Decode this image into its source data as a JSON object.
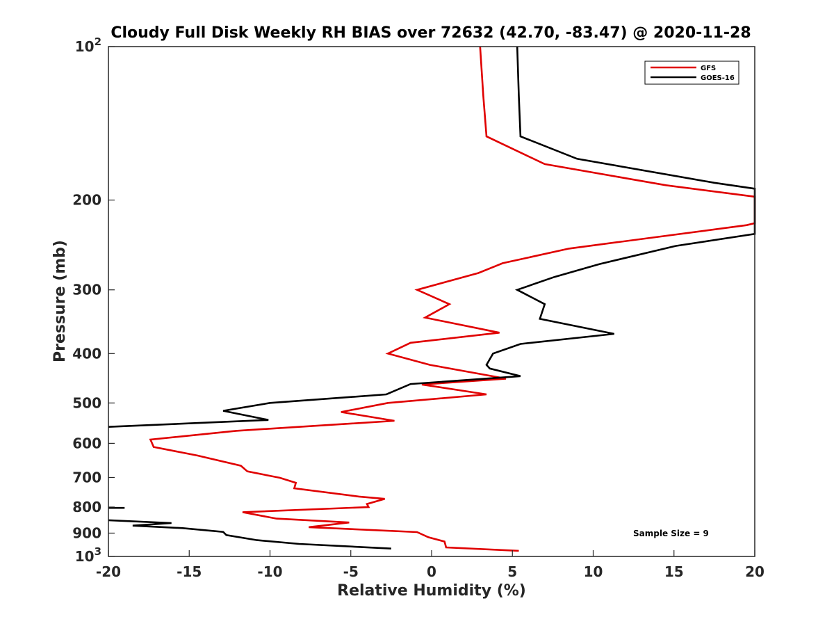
{
  "chart_data": {
    "type": "line",
    "title": "Cloudy Full Disk Weekly RH BIAS over 72632 (42.70, -83.47) @ 2020-11-28",
    "xlabel": "Relative Humidity (%)",
    "ylabel": "Pressure (mb)",
    "xlim": [
      -20,
      20
    ],
    "ylim": [
      100,
      1000
    ],
    "y_scale": "log",
    "y_reversed": true,
    "x_ticks": [
      {
        "value": -20,
        "label": "-20"
      },
      {
        "value": -15,
        "label": "-15"
      },
      {
        "value": -10,
        "label": "-10"
      },
      {
        "value": -5,
        "label": "-5"
      },
      {
        "value": 0,
        "label": "0"
      },
      {
        "value": 5,
        "label": "5"
      },
      {
        "value": 10,
        "label": "10"
      },
      {
        "value": 15,
        "label": "15"
      },
      {
        "value": 20,
        "label": "20"
      }
    ],
    "y_ticks": [
      {
        "value": 100,
        "base": "10",
        "exp": "2"
      },
      {
        "value": 200,
        "label": "200"
      },
      {
        "value": 300,
        "label": "300"
      },
      {
        "value": 400,
        "label": "400"
      },
      {
        "value": 500,
        "label": "500"
      },
      {
        "value": 600,
        "label": "600"
      },
      {
        "value": 700,
        "label": "700"
      },
      {
        "value": 800,
        "label": "800"
      },
      {
        "value": 900,
        "label": "900"
      },
      {
        "value": 1000,
        "base": "10",
        "exp": "3"
      }
    ],
    "grid": false,
    "legend_position": "top-right",
    "annotation": "Sample Size = 9",
    "series": [
      {
        "name": "GFS",
        "color": "#e00000",
        "points": [
          [
            3.0,
            100
          ],
          [
            3.2,
            125
          ],
          [
            3.4,
            150
          ],
          [
            7.0,
            170
          ],
          [
            14.5,
            187
          ],
          [
            20.0,
            197
          ],
          [
            20.0,
            222
          ],
          [
            19.5,
            224
          ],
          [
            8.5,
            249
          ],
          [
            4.4,
            266
          ],
          [
            2.9,
            278
          ],
          [
            -0.9,
            300
          ],
          [
            1.1,
            320
          ],
          [
            -0.4,
            340
          ],
          [
            4.2,
            364
          ],
          [
            -1.3,
            381
          ],
          [
            -2.7,
            400
          ],
          [
            -0.1,
            421
          ],
          [
            4.6,
            448
          ],
          [
            -0.6,
            460
          ],
          [
            3.4,
            481
          ],
          [
            -2.7,
            500
          ],
          [
            -5.6,
            521
          ],
          [
            -2.3,
            542
          ],
          [
            -12.1,
            567
          ],
          [
            -17.4,
            590
          ],
          [
            -17.2,
            610
          ],
          [
            -14.5,
            634
          ],
          [
            -11.8,
            664
          ],
          [
            -11.4,
            681
          ],
          [
            -9.4,
            701
          ],
          [
            -8.4,
            717
          ],
          [
            -8.5,
            735
          ],
          [
            -4.5,
            763
          ],
          [
            -2.9,
            771
          ],
          [
            -4.0,
            789
          ],
          [
            -3.9,
            800
          ],
          [
            -11.7,
            819
          ],
          [
            -9.6,
            843
          ],
          [
            -5.1,
            858
          ],
          [
            -7.6,
            876
          ],
          [
            -0.9,
            896
          ],
          [
            -0.2,
            917
          ],
          [
            0.8,
            935
          ],
          [
            0.9,
            960
          ],
          [
            5.4,
            975
          ]
        ]
      },
      {
        "name": "GOES-16",
        "color": "#000000",
        "points": [
          [
            5.3,
            100
          ],
          [
            5.4,
            125
          ],
          [
            5.5,
            150
          ],
          [
            9.0,
            166
          ],
          [
            17.5,
            185
          ],
          [
            20.0,
            190
          ],
          [
            20.0,
            233
          ],
          [
            15.1,
            246
          ],
          [
            10.4,
            267
          ],
          [
            7.6,
            283
          ],
          [
            5.3,
            300
          ],
          [
            7.0,
            320
          ],
          [
            6.7,
            342
          ],
          [
            11.3,
            366
          ],
          [
            5.5,
            383
          ],
          [
            3.8,
            400
          ],
          [
            3.4,
            421
          ],
          [
            3.6,
            428
          ],
          [
            5.5,
            443
          ],
          [
            -1.3,
            459
          ],
          [
            -2.8,
            481
          ],
          [
            -10.0,
            500
          ],
          [
            -12.9,
            518
          ],
          [
            -10.1,
            540
          ],
          [
            -20.0,
            557
          ]
        ]
      }
    ],
    "extra_segments": [
      {
        "series": "GOES-16",
        "color": "#000000",
        "points": [
          [
            -20.0,
            803
          ],
          [
            -19.0,
            803
          ]
        ]
      },
      {
        "series": "GOES-16",
        "color": "#000000",
        "points": [
          [
            -20.0,
            849
          ],
          [
            -16.1,
            860
          ],
          [
            -18.5,
            870
          ],
          [
            -15.4,
            880
          ],
          [
            -12.9,
            895
          ],
          [
            -12.7,
            908
          ],
          [
            -10.8,
            929
          ],
          [
            -8.2,
            945
          ],
          [
            -2.5,
            965
          ]
        ]
      }
    ]
  }
}
